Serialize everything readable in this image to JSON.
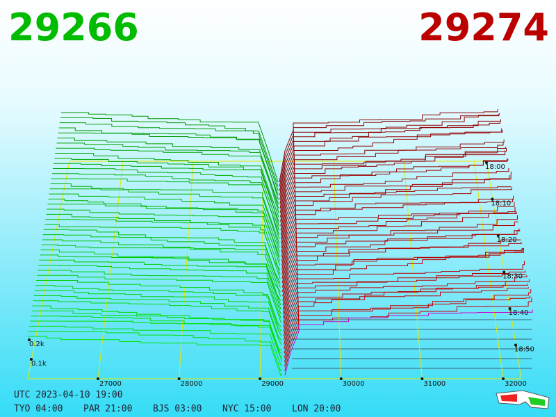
{
  "header": {
    "bid": "29266",
    "ask": "29274"
  },
  "price_axis": {
    "labels": [
      "27000",
      "28000",
      "29000",
      "30000",
      "31000",
      "32000"
    ]
  },
  "time_axis": {
    "labels": [
      "18:00",
      "18:10",
      "18:20",
      "18:30",
      "18:40",
      "18:50"
    ]
  },
  "depth_axis": {
    "labels": [
      "0.2k",
      "0.1k"
    ]
  },
  "clock": {
    "utc": "UTC 2023-04-10 19:00",
    "cities": [
      "TYO 04:00",
      "PAR 21:00",
      "BJS 03:00",
      "NYC 15:00",
      "LON 20:00"
    ]
  }
}
